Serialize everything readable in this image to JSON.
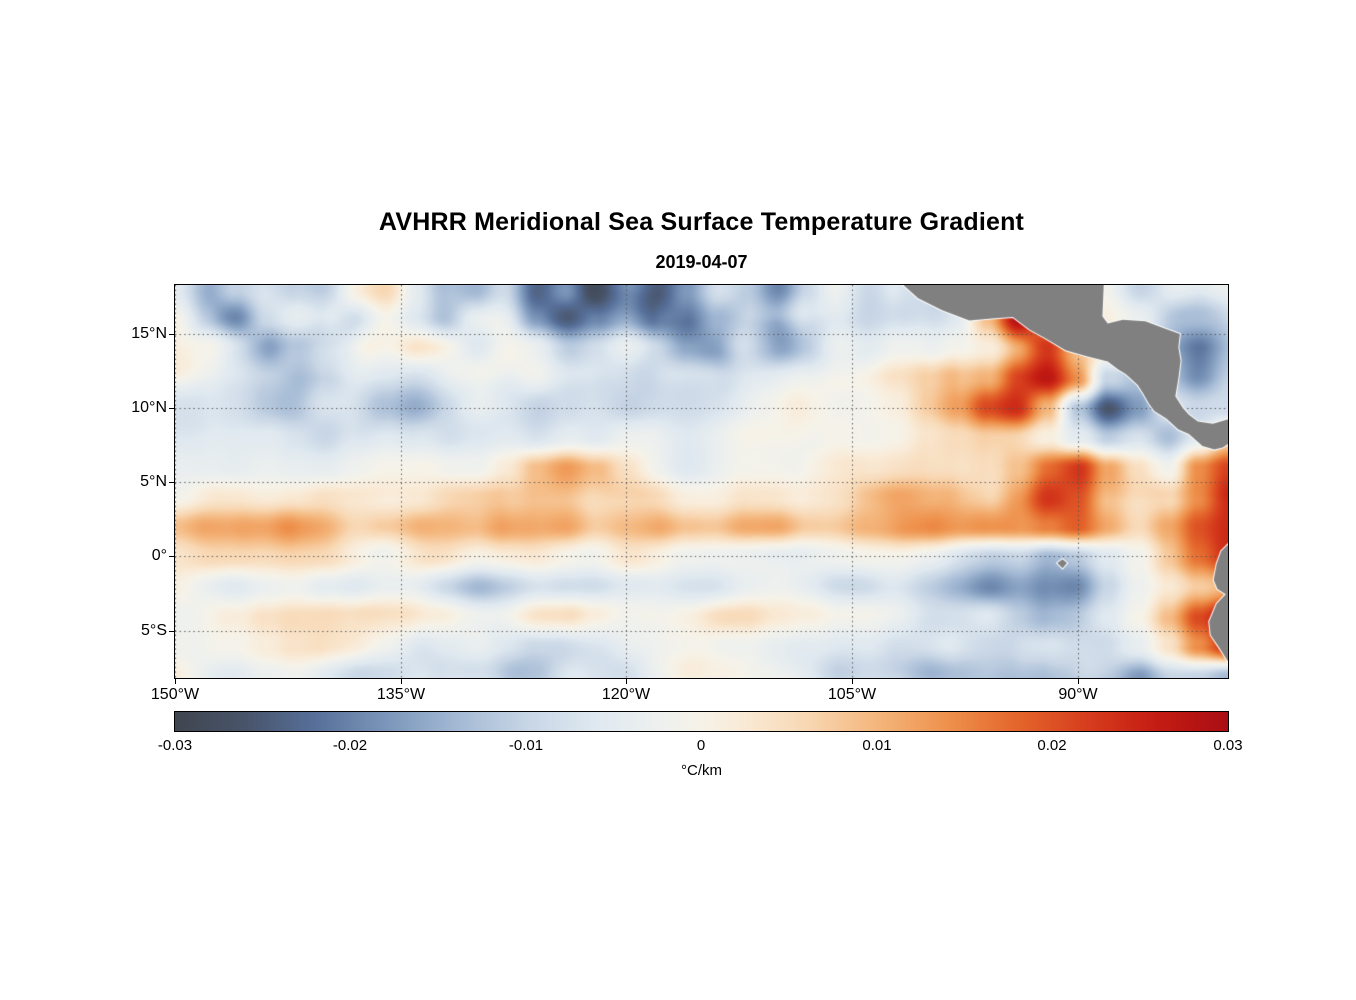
{
  "chart_data": {
    "type": "heatmap",
    "title": "AVHRR Meridional Sea Surface Temperature Gradient",
    "subtitle": "2019-04-07",
    "x_axis": {
      "tick_labels": [
        "150°W",
        "135°W",
        "120°W",
        "105°W",
        "90°W"
      ],
      "tick_lons": [
        -150,
        -135,
        -120,
        -105,
        -90
      ],
      "range_lon": [
        -150,
        -80
      ]
    },
    "y_axis": {
      "tick_labels": [
        "15°N",
        "10°N",
        "5°N",
        "0°",
        "5°S"
      ],
      "tick_lats": [
        15,
        10,
        5,
        0,
        -5
      ],
      "range_lat": [
        18.3,
        -8.2
      ]
    },
    "colorbar": {
      "unit_label": "°C/km",
      "min": -0.03,
      "max": 0.03,
      "tick_values": [
        -0.03,
        -0.02,
        -0.01,
        0,
        0.01,
        0.02,
        0.03
      ],
      "tick_labels": [
        "-0.03",
        "-0.02",
        "-0.01",
        "0",
        "0.01",
        "0.02",
        "0.03"
      ],
      "color_stops": [
        [
          -0.03,
          "#3f464f"
        ],
        [
          -0.026,
          "#48546a"
        ],
        [
          -0.022,
          "#57709a"
        ],
        [
          -0.018,
          "#7b96ba"
        ],
        [
          -0.014,
          "#a3b9d4"
        ],
        [
          -0.01,
          "#c7d5e5"
        ],
        [
          -0.006,
          "#e0e9f0"
        ],
        [
          -0.002,
          "#eff1ee"
        ],
        [
          0.0,
          "#f6f2e8"
        ],
        [
          0.002,
          "#f9ecda"
        ],
        [
          0.006,
          "#f8d8b4"
        ],
        [
          0.01,
          "#f4b67c"
        ],
        [
          0.014,
          "#ee924d"
        ],
        [
          0.018,
          "#e4662c"
        ],
        [
          0.022,
          "#d63d1d"
        ],
        [
          0.026,
          "#c41c13"
        ],
        [
          0.03,
          "#aa0e14"
        ]
      ]
    },
    "grid": {
      "description": "Approximate meridional SST gradient (°C/km) on 2° grid; lat rows from 18N to 8S, lon cols from 150W to 80W",
      "lat_start": 18,
      "lat_step": -2,
      "lon_start": -150,
      "lon_step": 2,
      "values_scale": 0.001,
      "values": [
        [
          -10,
          -16,
          -8,
          -3,
          -6,
          -10,
          -4,
          -2,
          -8,
          -14,
          -18,
          -10,
          -20,
          -12,
          -22,
          -18,
          -24,
          -16,
          -8,
          -14,
          -20,
          -12,
          -6,
          -10,
          -4,
          -2,
          0,
          2,
          0,
          0,
          -2,
          0,
          -4,
          -2,
          -6,
          -4
        ],
        [
          -6,
          -12,
          -16,
          -8,
          -4,
          -8,
          -14,
          -8,
          -12,
          -18,
          -12,
          -8,
          -16,
          -22,
          -16,
          -10,
          -18,
          -22,
          -14,
          -10,
          -16,
          -8,
          -4,
          -8,
          -6,
          -3,
          -1,
          10,
          30,
          16,
          4,
          0,
          -2,
          -6,
          -3,
          -5
        ],
        [
          -3,
          -6,
          -10,
          -12,
          -6,
          -3,
          -6,
          -10,
          -6,
          -8,
          -10,
          -6,
          -8,
          -12,
          -8,
          -5,
          -8,
          -12,
          -16,
          -8,
          -10,
          -6,
          -3,
          -6,
          -4,
          -2,
          2,
          6,
          12,
          20,
          8,
          2,
          -4,
          -8,
          -10,
          -6
        ],
        [
          -2,
          -4,
          -6,
          -8,
          -10,
          -5,
          -2,
          -4,
          -6,
          -4,
          -6,
          -8,
          -4,
          -6,
          -5,
          -3,
          -5,
          -7,
          -5,
          -3,
          -5,
          -4,
          -2,
          -3,
          -1,
          3,
          8,
          14,
          24,
          28,
          18,
          -6,
          -12,
          -8,
          -12,
          -8
        ],
        [
          -2,
          -3,
          -5,
          -7,
          -9,
          -6,
          -3,
          -5,
          -8,
          -5,
          -4,
          -6,
          -8,
          -5,
          -3,
          -4,
          -3,
          -4,
          -3,
          -2,
          -4,
          -3,
          -2,
          -2,
          0,
          4,
          10,
          20,
          26,
          14,
          -10,
          -24,
          -16,
          -6,
          -10,
          -8
        ],
        [
          -1,
          -2,
          -3,
          -4,
          -6,
          -8,
          -4,
          -2,
          -5,
          -7,
          -4,
          -3,
          -5,
          -4,
          -6,
          -3,
          -2,
          -3,
          -2,
          -1,
          -2,
          -3,
          -1,
          -2,
          -1,
          2,
          5,
          8,
          10,
          6,
          -4,
          -12,
          -8,
          -14,
          -6,
          4
        ],
        [
          0,
          -1,
          -2,
          -1,
          -2,
          -3,
          -2,
          -1,
          -2,
          -3,
          -2,
          2,
          8,
          12,
          8,
          3,
          0,
          -1,
          0,
          1,
          2,
          1,
          0,
          1,
          2,
          3,
          5,
          8,
          14,
          22,
          24,
          10,
          2,
          -4,
          12,
          20
        ],
        [
          2,
          3,
          2,
          1,
          2,
          4,
          3,
          2,
          3,
          5,
          4,
          6,
          9,
          10,
          7,
          6,
          7,
          5,
          4,
          6,
          7,
          5,
          4,
          6,
          7,
          6,
          8,
          10,
          16,
          24,
          20,
          8,
          4,
          6,
          16,
          24
        ],
        [
          6,
          9,
          8,
          6,
          9,
          11,
          8,
          10,
          11,
          9,
          8,
          12,
          14,
          16,
          12,
          14,
          15,
          11,
          9,
          12,
          13,
          9,
          8,
          10,
          11,
          9,
          8,
          10,
          12,
          16,
          20,
          14,
          10,
          16,
          24,
          28
        ],
        [
          3,
          4,
          3,
          2,
          3,
          4,
          3,
          2,
          3,
          3,
          2,
          3,
          4,
          3,
          2,
          3,
          2,
          1,
          0,
          -1,
          -2,
          -3,
          -4,
          -4,
          -5,
          -7,
          -9,
          -8,
          -7,
          -12,
          -10,
          -4,
          2,
          10,
          18,
          24
        ],
        [
          -4,
          -6,
          -7,
          -5,
          -4,
          -7,
          -9,
          -7,
          -5,
          -7,
          -9,
          -7,
          -6,
          -8,
          -9,
          -7,
          -6,
          -8,
          -9,
          -7,
          -6,
          -8,
          -10,
          -11,
          -9,
          -11,
          -13,
          -15,
          -12,
          -16,
          -20,
          -12,
          -4,
          2,
          8,
          12
        ],
        [
          -2,
          -3,
          -2,
          2,
          4,
          5,
          3,
          2,
          4,
          5,
          3,
          2,
          4,
          3,
          -1,
          -3,
          -2,
          1,
          3,
          2,
          -1,
          -3,
          -5,
          -4,
          -5,
          -7,
          -6,
          -4,
          -7,
          -10,
          -12,
          -8,
          -2,
          8,
          20,
          28
        ],
        [
          -1,
          -3,
          -4,
          -2,
          0,
          2,
          3,
          1,
          0,
          2,
          3,
          1,
          -1,
          -3,
          -2,
          -1,
          -2,
          -3,
          -2,
          -1,
          -2,
          -3,
          -4,
          -3,
          -5,
          -6,
          -4,
          -3,
          -5,
          -7,
          -9,
          -11,
          -7,
          0,
          10,
          18
        ],
        [
          -2,
          -4,
          -5,
          -3,
          -2,
          -4,
          -5,
          -3,
          -2,
          -4,
          -6,
          -7,
          -4,
          -2,
          -4,
          -5,
          -3,
          -2,
          -4,
          -5,
          -4,
          -5,
          -7,
          -5,
          -6,
          -8,
          -6,
          -5,
          -7,
          -10,
          -13,
          -16,
          -18,
          -12,
          -14,
          -20
        ]
      ]
    },
    "noise": {
      "amp1": 0.0048,
      "scale1": 62,
      "amp2": 0.0028,
      "scale2": 30,
      "stretch_x": 1.7
    },
    "gridlines": {
      "style": "dotted",
      "color": "#565656"
    },
    "land": {
      "fill": "#808080",
      "outline": "#ffffff",
      "polygons_lonlat": {
        "central_america": [
          [
            -101.8,
            18.5
          ],
          [
            -100.6,
            17.4
          ],
          [
            -99.0,
            16.6
          ],
          [
            -97.2,
            15.9
          ],
          [
            -95.5,
            16.05
          ],
          [
            -94.3,
            16.15
          ],
          [
            -93.2,
            15.3
          ],
          [
            -92.2,
            14.75
          ],
          [
            -90.8,
            13.9
          ],
          [
            -89.4,
            13.5
          ],
          [
            -88.0,
            13.15
          ],
          [
            -87.3,
            12.6
          ],
          [
            -86.8,
            12.3
          ],
          [
            -86.0,
            11.55
          ],
          [
            -85.65,
            11.0
          ],
          [
            -85.25,
            10.3
          ],
          [
            -84.9,
            9.8
          ],
          [
            -84.1,
            9.3
          ],
          [
            -83.3,
            8.55
          ],
          [
            -82.6,
            8.25
          ],
          [
            -81.7,
            7.45
          ],
          [
            -80.9,
            7.2
          ],
          [
            -80.35,
            7.35
          ],
          [
            -79.8,
            7.7
          ],
          [
            -79.8,
            9.3
          ],
          [
            -81.0,
            8.95
          ],
          [
            -82.0,
            9.1
          ],
          [
            -82.6,
            9.55
          ],
          [
            -83.0,
            10.0
          ],
          [
            -83.5,
            10.8
          ],
          [
            -83.3,
            12.0
          ],
          [
            -83.15,
            13.2
          ],
          [
            -83.3,
            14.1
          ],
          [
            -83.2,
            15.0
          ],
          [
            -84.3,
            15.4
          ],
          [
            -85.5,
            15.85
          ],
          [
            -87.0,
            15.95
          ],
          [
            -88.0,
            15.7
          ],
          [
            -88.35,
            16.2
          ],
          [
            -88.3,
            17.3
          ],
          [
            -88.25,
            18.5
          ]
        ],
        "south_america": [
          [
            -79.7,
            1.1
          ],
          [
            -80.45,
            0.35
          ],
          [
            -80.75,
            -0.5
          ],
          [
            -80.95,
            -1.6
          ],
          [
            -80.7,
            -2.2
          ],
          [
            -80.15,
            -2.55
          ],
          [
            -80.75,
            -3.2
          ],
          [
            -81.25,
            -4.4
          ],
          [
            -81.15,
            -5.3
          ],
          [
            -80.55,
            -6.2
          ],
          [
            -80.05,
            -7.0
          ],
          [
            -79.7,
            -7.5
          ]
        ],
        "galapagos": [
          [
            -91.35,
            -0.45
          ],
          [
            -91.0,
            -0.2
          ],
          [
            -90.7,
            -0.45
          ],
          [
            -91.0,
            -0.8
          ]
        ]
      }
    }
  }
}
